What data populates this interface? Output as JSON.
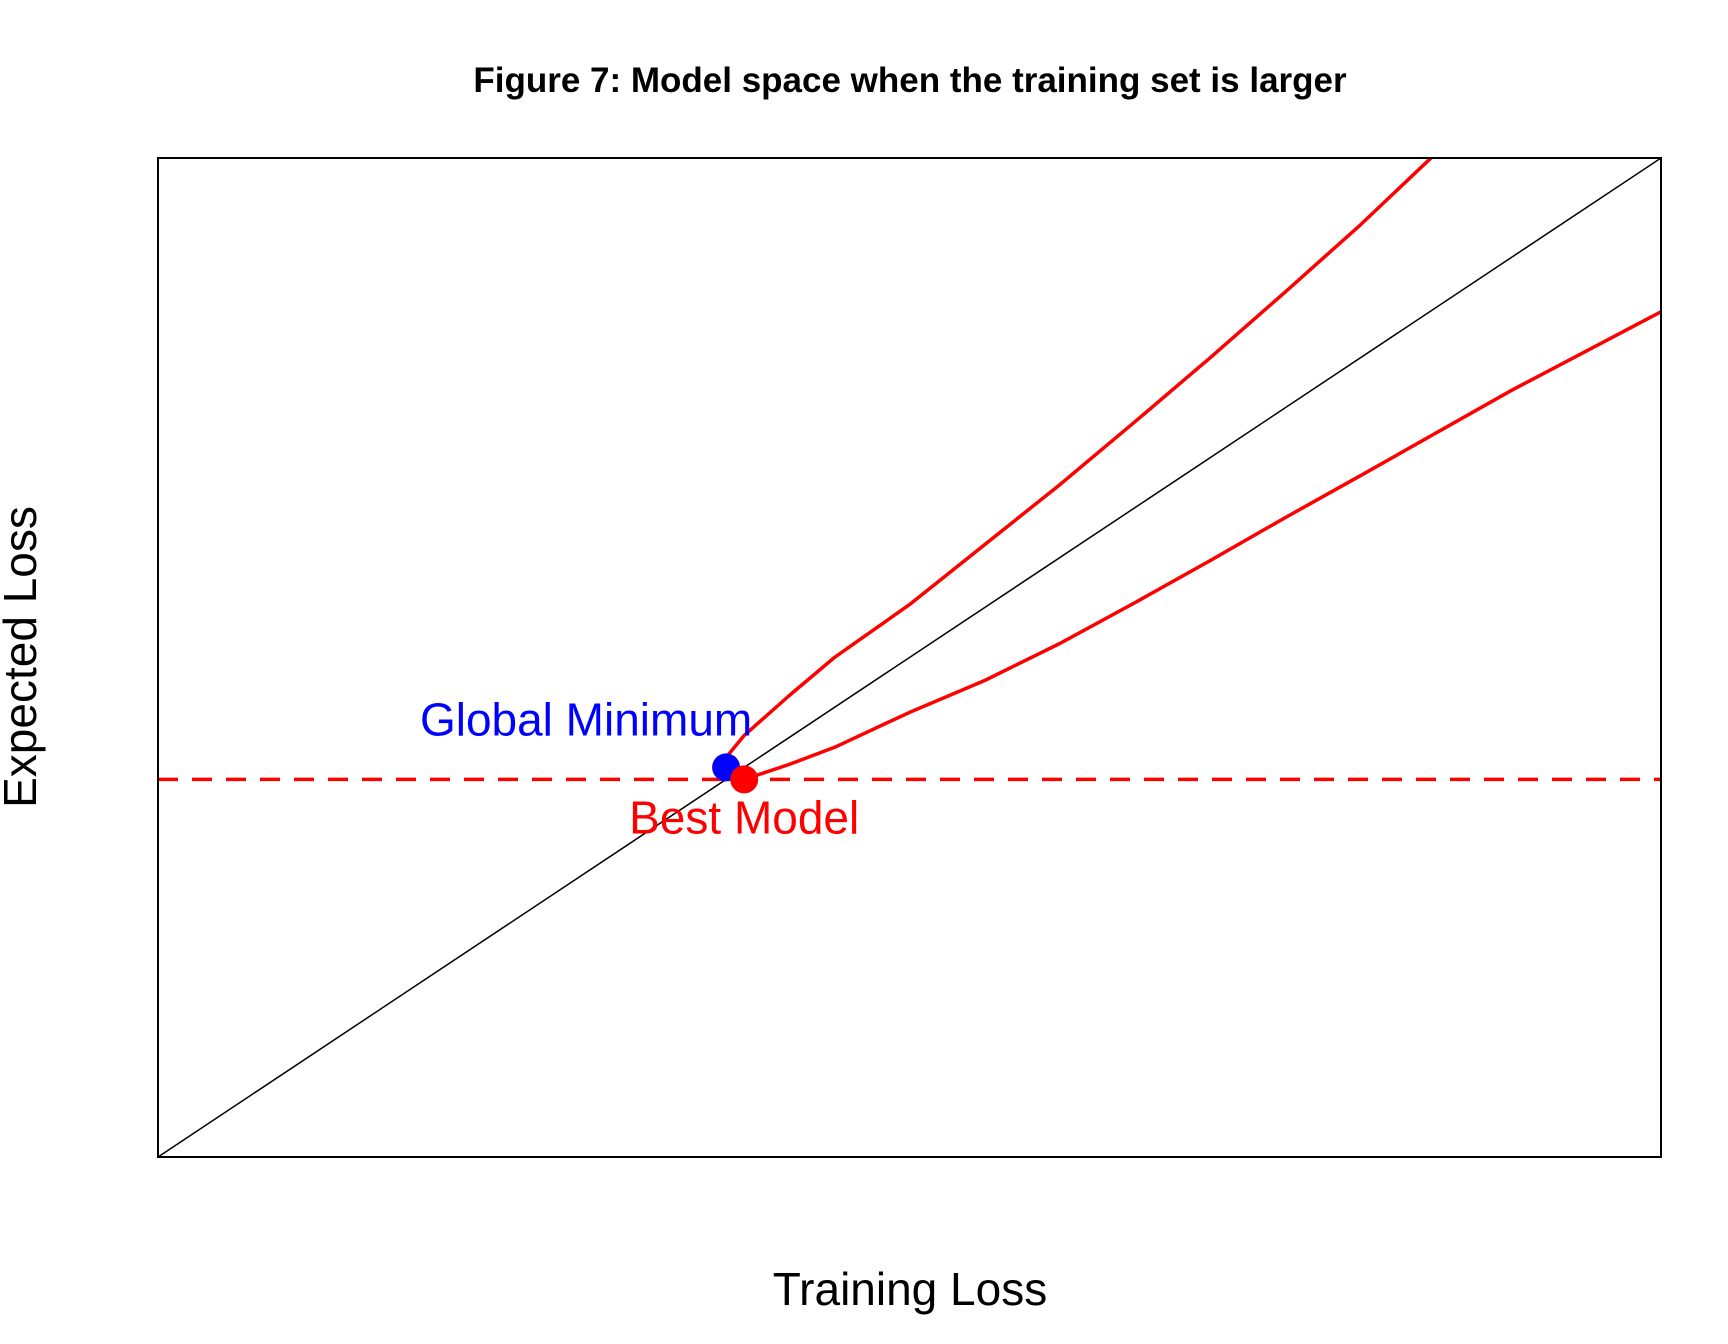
{
  "chart_data": {
    "type": "line",
    "title": "Figure 7: Model space when the training set is larger",
    "xlabel": "Training Loss",
    "ylabel": "Expected Loss",
    "xlim": [
      0,
      1
    ],
    "ylim": [
      0,
      1
    ],
    "axes_ticks": false,
    "grid": false,
    "colors": {
      "reference_line": "#000000",
      "bounds": "#ff0000",
      "threshold": "#ff0000",
      "global_minimum": "#0000ff",
      "best_model": "#ff0000"
    },
    "series": [
      {
        "x": [
          0,
          1
        ],
        "y": [
          0,
          1
        ]
      },
      {
        "x": [
          0.378,
          0.39,
          0.42,
          0.45,
          0.5,
          0.55,
          0.6,
          0.65,
          0.7,
          0.75,
          0.8,
          0.847
        ],
        "y": [
          0.4,
          0.422,
          0.462,
          0.5,
          0.553,
          0.613,
          0.673,
          0.736,
          0.8,
          0.866,
          0.933,
          1.0
        ]
      },
      {
        "x": [
          0.39,
          0.42,
          0.45,
          0.5,
          0.55,
          0.6,
          0.65,
          0.7,
          0.75,
          0.8,
          0.9,
          1.0
        ],
        "y": [
          0.378,
          0.393,
          0.41,
          0.445,
          0.477,
          0.514,
          0.555,
          0.597,
          0.64,
          0.682,
          0.767,
          0.846
        ]
      }
    ],
    "hlines": [
      {
        "y": 0.378
      }
    ],
    "points": [
      {
        "label": "Global Minimum",
        "x": 0.378,
        "y": 0.39
      },
      {
        "label": "Best Model",
        "x": 0.39,
        "y": 0.378
      }
    ]
  }
}
